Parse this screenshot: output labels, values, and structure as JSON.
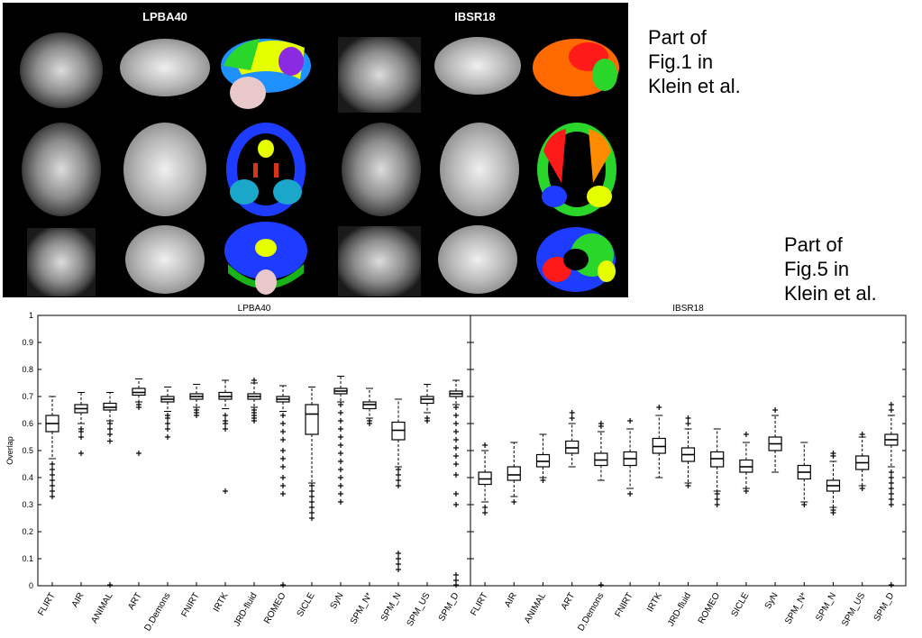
{
  "figure1": {
    "left_title": "LPBA40",
    "right_title": "IBSR18"
  },
  "captions": {
    "fig1": "Part of\nFig.1 in\nKlein et al.",
    "fig5": "Part of\nFig.5 in\nKlein et al."
  },
  "colors": {
    "box": "#000000",
    "panel_bg": "#000000"
  },
  "chart_data": [
    {
      "type": "box",
      "title": "LPBA40",
      "ylabel": "Overlap",
      "ylim": [
        0,
        1
      ],
      "yticks": [
        "0",
        "0.1",
        "0.2",
        "0.3",
        "0.4",
        "0.5",
        "0.6",
        "0.7",
        "0.8",
        "0.9",
        "1"
      ],
      "categories": [
        "FLIRT",
        "AIR",
        "ANIMAL",
        "ART",
        "D.Demons",
        "FNIRT",
        "IRTK",
        "JRD-fluid",
        "ROMEO",
        "SICLE",
        "SyN",
        "SPM_N*",
        "SPM_N",
        "SPM_US",
        "SPM_D"
      ],
      "boxes": [
        {
          "q1": 0.57,
          "median": 0.6,
          "q3": 0.63,
          "whisker_low": 0.47,
          "whisker_high": 0.7,
          "outliers": [
            0.45,
            0.43,
            0.41,
            0.39,
            0.37,
            0.35,
            0.33
          ]
        },
        {
          "q1": 0.64,
          "median": 0.655,
          "q3": 0.67,
          "whisker_low": 0.6,
          "whisker_high": 0.715,
          "outliers": [
            0.58,
            0.57,
            0.55,
            0.49
          ]
        },
        {
          "q1": 0.65,
          "median": 0.66,
          "q3": 0.675,
          "whisker_low": 0.61,
          "whisker_high": 0.715,
          "outliers": [
            0.6,
            0.58,
            0.56,
            0.535,
            0.003
          ]
        },
        {
          "q1": 0.705,
          "median": 0.715,
          "q3": 0.73,
          "whisker_low": 0.68,
          "whisker_high": 0.765,
          "outliers": [
            0.67,
            0.66,
            0.49
          ]
        },
        {
          "q1": 0.68,
          "median": 0.69,
          "q3": 0.7,
          "whisker_low": 0.645,
          "whisker_high": 0.735,
          "outliers": [
            0.63,
            0.62,
            0.6,
            0.58,
            0.55
          ]
        },
        {
          "q1": 0.69,
          "median": 0.7,
          "q3": 0.71,
          "whisker_low": 0.66,
          "whisker_high": 0.745,
          "outliers": [
            0.65,
            0.64,
            0.63
          ]
        },
        {
          "q1": 0.69,
          "median": 0.7,
          "q3": 0.715,
          "whisker_low": 0.655,
          "whisker_high": 0.76,
          "outliers": [
            0.63,
            0.61,
            0.6,
            0.58,
            0.35
          ]
        },
        {
          "q1": 0.69,
          "median": 0.7,
          "q3": 0.71,
          "whisker_low": 0.66,
          "whisker_high": 0.75,
          "outliers": [
            0.65,
            0.64,
            0.63,
            0.62,
            0.61,
            0.76
          ]
        },
        {
          "q1": 0.68,
          "median": 0.69,
          "q3": 0.7,
          "whisker_low": 0.645,
          "whisker_high": 0.74,
          "outliers": [
            0.63,
            0.6,
            0.57,
            0.54,
            0.5,
            0.47,
            0.44,
            0.4,
            0.37,
            0.34,
            0.003
          ]
        },
        {
          "q1": 0.56,
          "median": 0.635,
          "q3": 0.67,
          "whisker_low": 0.38,
          "whisker_high": 0.735,
          "outliers": [
            0.37,
            0.35,
            0.33,
            0.31,
            0.29,
            0.27,
            0.25
          ]
        },
        {
          "q1": 0.71,
          "median": 0.72,
          "q3": 0.73,
          "whisker_low": 0.68,
          "whisker_high": 0.775,
          "outliers": [
            0.67,
            0.64,
            0.61,
            0.58,
            0.55,
            0.52,
            0.49,
            0.46,
            0.43,
            0.4,
            0.37,
            0.34,
            0.31
          ]
        },
        {
          "q1": 0.655,
          "median": 0.67,
          "q3": 0.68,
          "whisker_low": 0.62,
          "whisker_high": 0.73,
          "outliers": [
            0.61,
            0.6
          ]
        },
        {
          "q1": 0.54,
          "median": 0.575,
          "q3": 0.605,
          "whisker_low": 0.44,
          "whisker_high": 0.69,
          "outliers": [
            0.43,
            0.41,
            0.39,
            0.37,
            0.12,
            0.1,
            0.08,
            0.06
          ]
        },
        {
          "q1": 0.675,
          "median": 0.69,
          "q3": 0.7,
          "whisker_low": 0.64,
          "whisker_high": 0.745,
          "outliers": [
            0.62,
            0.61
          ]
        },
        {
          "q1": 0.7,
          "median": 0.71,
          "q3": 0.72,
          "whisker_low": 0.67,
          "whisker_high": 0.76,
          "outliers": [
            0.66,
            0.63,
            0.6,
            0.57,
            0.54,
            0.51,
            0.48,
            0.45,
            0.41,
            0.34,
            0.3,
            0.04,
            0.02,
            0.003
          ]
        }
      ]
    },
    {
      "type": "box",
      "title": "IBSR18",
      "ylim": [
        0,
        1
      ],
      "categories": [
        "FLIRT",
        "AIR",
        "ANIMAL",
        "ART",
        "D.Demons",
        "FNIRT",
        "IRTK",
        "JRD-fluid",
        "ROMEO",
        "SICLE",
        "SyN",
        "SPM_N*",
        "SPM_N",
        "SPM_US",
        "SPM_D"
      ],
      "boxes": [
        {
          "q1": 0.375,
          "median": 0.395,
          "q3": 0.42,
          "whisker_low": 0.31,
          "whisker_high": 0.5,
          "outliers": [
            0.29,
            0.27,
            0.52
          ]
        },
        {
          "q1": 0.39,
          "median": 0.41,
          "q3": 0.44,
          "whisker_low": 0.33,
          "whisker_high": 0.53,
          "outliers": [
            0.31
          ]
        },
        {
          "q1": 0.44,
          "median": 0.46,
          "q3": 0.485,
          "whisker_low": 0.4,
          "whisker_high": 0.56,
          "outliers": [
            0.39
          ]
        },
        {
          "q1": 0.49,
          "median": 0.51,
          "q3": 0.535,
          "whisker_low": 0.44,
          "whisker_high": 0.6,
          "outliers": [
            0.62,
            0.64
          ]
        },
        {
          "q1": 0.445,
          "median": 0.465,
          "q3": 0.49,
          "whisker_low": 0.39,
          "whisker_high": 0.57,
          "outliers": [
            0.59,
            0.6,
            0.003
          ]
        },
        {
          "q1": 0.445,
          "median": 0.47,
          "q3": 0.495,
          "whisker_low": 0.36,
          "whisker_high": 0.58,
          "outliers": [
            0.34,
            0.61
          ]
        },
        {
          "q1": 0.49,
          "median": 0.515,
          "q3": 0.545,
          "whisker_low": 0.4,
          "whisker_high": 0.63,
          "outliers": [
            0.66
          ]
        },
        {
          "q1": 0.46,
          "median": 0.485,
          "q3": 0.51,
          "whisker_low": 0.38,
          "whisker_high": 0.58,
          "outliers": [
            0.37,
            0.6,
            0.62
          ]
        },
        {
          "q1": 0.44,
          "median": 0.47,
          "q3": 0.495,
          "whisker_low": 0.35,
          "whisker_high": 0.58,
          "outliers": [
            0.34,
            0.32,
            0.3
          ]
        },
        {
          "q1": 0.42,
          "median": 0.44,
          "q3": 0.465,
          "whisker_low": 0.36,
          "whisker_high": 0.53,
          "outliers": [
            0.35,
            0.56
          ]
        },
        {
          "q1": 0.5,
          "median": 0.525,
          "q3": 0.55,
          "whisker_low": 0.42,
          "whisker_high": 0.63,
          "outliers": [
            0.65
          ]
        },
        {
          "q1": 0.395,
          "median": 0.42,
          "q3": 0.445,
          "whisker_low": 0.31,
          "whisker_high": 0.53,
          "outliers": [
            0.3
          ]
        },
        {
          "q1": 0.35,
          "median": 0.37,
          "q3": 0.39,
          "whisker_low": 0.29,
          "whisker_high": 0.46,
          "outliers": [
            0.28,
            0.27,
            0.48,
            0.49
          ]
        },
        {
          "q1": 0.43,
          "median": 0.455,
          "q3": 0.48,
          "whisker_low": 0.37,
          "whisker_high": 0.55,
          "outliers": [
            0.36,
            0.56
          ]
        },
        {
          "q1": 0.52,
          "median": 0.54,
          "q3": 0.56,
          "whisker_low": 0.44,
          "whisker_high": 0.63,
          "outliers": [
            0.42,
            0.4,
            0.38,
            0.36,
            0.34,
            0.32,
            0.3,
            0.65,
            0.67,
            0.003
          ]
        }
      ]
    }
  ]
}
